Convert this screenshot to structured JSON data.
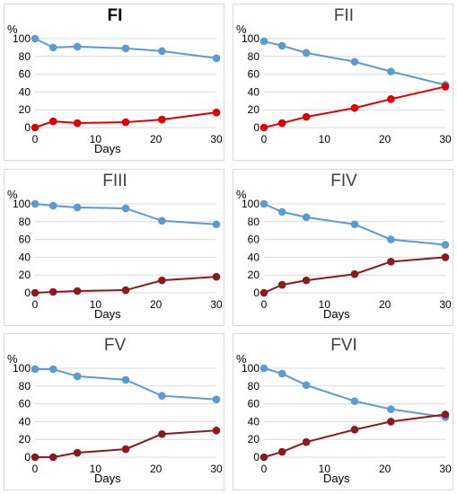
{
  "chart_data": [
    {
      "type": "line",
      "title": "FI",
      "ylabel": "%",
      "xlabel": "Days",
      "ylim": [
        0,
        100
      ],
      "yticks": [
        0,
        20,
        40,
        60,
        80,
        100
      ],
      "xticks": [
        0,
        10,
        20,
        30
      ],
      "xlim": [
        0,
        30
      ],
      "grid": true,
      "series": [
        {
          "color": "#5b9bd5",
          "x": [
            0,
            3,
            7,
            15,
            21,
            30
          ],
          "y": [
            100,
            90,
            91,
            89,
            86,
            78
          ]
        },
        {
          "color": "#e00000",
          "x": [
            0,
            3,
            7,
            15,
            21,
            30
          ],
          "y": [
            0,
            7,
            5,
            6,
            9,
            17
          ]
        }
      ]
    },
    {
      "type": "line",
      "title": "FII",
      "ylabel": "%",
      "xlabel": "Days",
      "ylim": [
        0,
        100
      ],
      "yticks": [
        0,
        20,
        40,
        60,
        80,
        100
      ],
      "xticks": [
        0,
        10,
        20,
        30
      ],
      "xlim": [
        0,
        30
      ],
      "grid": true,
      "series": [
        {
          "color": "#5b9bd5",
          "x": [
            0,
            3,
            7,
            15,
            21,
            30
          ],
          "y": [
            97,
            92,
            84,
            74,
            63,
            48
          ]
        },
        {
          "color": "#e00000",
          "x": [
            0,
            3,
            7,
            15,
            21,
            30
          ],
          "y": [
            0,
            5,
            12,
            22,
            32,
            46
          ]
        }
      ]
    },
    {
      "type": "line",
      "title": "FIII",
      "ylabel": "%",
      "xlabel": "Days",
      "ylim": [
        0,
        100
      ],
      "yticks": [
        0,
        20,
        40,
        60,
        80,
        100
      ],
      "xticks": [
        0,
        10,
        20,
        30
      ],
      "xlim": [
        0,
        30
      ],
      "grid": true,
      "series": [
        {
          "color": "#5b9bd5",
          "x": [
            0,
            3,
            7,
            15,
            21,
            30
          ],
          "y": [
            100,
            98,
            96,
            95,
            81,
            77
          ]
        },
        {
          "color": "#8b1a1a",
          "x": [
            0,
            3,
            7,
            15,
            21,
            30
          ],
          "y": [
            0,
            1,
            2,
            3,
            14,
            18
          ]
        }
      ]
    },
    {
      "type": "line",
      "title": "FIV",
      "ylabel": "%",
      "xlabel": "Days",
      "ylim": [
        0,
        100
      ],
      "yticks": [
        0,
        20,
        40,
        60,
        80,
        100
      ],
      "xticks": [
        0,
        10,
        20,
        30
      ],
      "xlim": [
        0,
        30
      ],
      "grid": true,
      "series": [
        {
          "color": "#5b9bd5",
          "x": [
            0,
            3,
            7,
            15,
            21,
            30
          ],
          "y": [
            100,
            91,
            85,
            77,
            60,
            54
          ]
        },
        {
          "color": "#8b1a1a",
          "x": [
            0,
            3,
            7,
            15,
            21,
            30
          ],
          "y": [
            0,
            9,
            14,
            21,
            35,
            40
          ]
        }
      ]
    },
    {
      "type": "line",
      "title": "FV",
      "ylabel": "%",
      "xlabel": "Days",
      "ylim": [
        0,
        100
      ],
      "yticks": [
        0,
        20,
        40,
        60,
        80,
        100
      ],
      "xticks": [
        0,
        10,
        20,
        30
      ],
      "xlim": [
        0,
        30
      ],
      "grid": true,
      "series": [
        {
          "color": "#5b9bd5",
          "x": [
            0,
            3,
            7,
            15,
            21,
            30
          ],
          "y": [
            99,
            99,
            91,
            87,
            69,
            65
          ]
        },
        {
          "color": "#8b1a1a",
          "x": [
            0,
            3,
            7,
            15,
            21,
            30
          ],
          "y": [
            0,
            0,
            5,
            9,
            26,
            30
          ]
        }
      ]
    },
    {
      "type": "line",
      "title": "FVI",
      "ylabel": "%",
      "xlabel": "Days",
      "ylim": [
        0,
        100
      ],
      "yticks": [
        0,
        20,
        40,
        60,
        80,
        100
      ],
      "xticks": [
        0,
        10,
        20,
        30
      ],
      "xlim": [
        0,
        30
      ],
      "grid": true,
      "series": [
        {
          "color": "#5b9bd5",
          "x": [
            0,
            3,
            7,
            15,
            21,
            30
          ],
          "y": [
            100,
            94,
            81,
            63,
            54,
            45
          ]
        },
        {
          "color": "#8b1a1a",
          "x": [
            0,
            3,
            7,
            15,
            21,
            30
          ],
          "y": [
            0,
            6,
            17,
            31,
            40,
            48
          ]
        }
      ]
    }
  ]
}
